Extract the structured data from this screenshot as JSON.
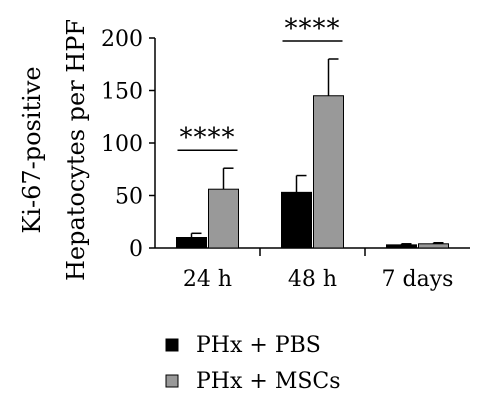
{
  "chart_data": {
    "type": "bar",
    "ylabel_lines": [
      "Ki-67-positive",
      "Hepatocytes per HPF"
    ],
    "ylim": [
      0,
      200
    ],
    "yticks": [
      0,
      50,
      100,
      150,
      200
    ],
    "categories": [
      "24 h",
      "48 h",
      "7 days"
    ],
    "series": [
      {
        "name": "PHx + PBS",
        "color": "#000000",
        "values": [
          10,
          53,
          3
        ],
        "errors": [
          4,
          16,
          1
        ]
      },
      {
        "name": "PHx + MSCs",
        "color": "#999999",
        "values": [
          56,
          145,
          4
        ],
        "errors": [
          20,
          35,
          1
        ]
      }
    ],
    "annotations": [
      {
        "category_index": 0,
        "label": "****"
      },
      {
        "category_index": 1,
        "label": "****"
      }
    ],
    "legend": "bottom",
    "grid": false
  }
}
